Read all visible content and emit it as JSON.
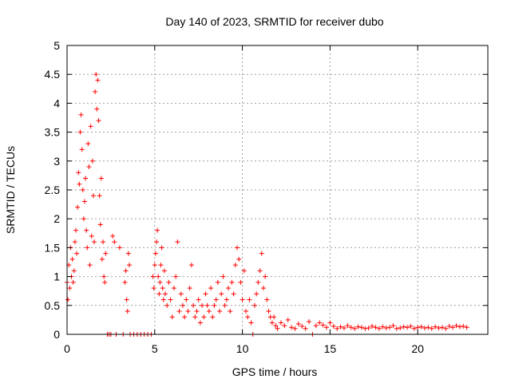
{
  "chart_data": {
    "type": "scatter",
    "title": "Day 140 of 2023, SRMTID for receiver dubo",
    "xlabel": "GPS time / hours",
    "ylabel": "SRMTID / TECUs",
    "xlim": [
      0,
      24
    ],
    "ylim": [
      0,
      5
    ],
    "xticks": [
      0,
      5,
      10,
      15,
      20
    ],
    "xtick_labels": [
      "0",
      "5",
      "10",
      "15",
      "20"
    ],
    "yticks": [
      0,
      0.5,
      1,
      1.5,
      2,
      2.5,
      3,
      3.5,
      4,
      4.5,
      5
    ],
    "ytick_labels": [
      "0",
      "0.5",
      "1",
      "1.5",
      "2",
      "2.5",
      "3",
      "3.5",
      "4",
      "4.5",
      "5"
    ],
    "grid": true,
    "marker": "+",
    "color": "#ff0000",
    "series": [
      {
        "name": "SRMTID",
        "x": [
          0.0,
          0.05,
          0.1,
          0.15,
          0.2,
          0.25,
          0.3,
          0.35,
          0.4,
          0.45,
          0.5,
          0.55,
          0.6,
          0.65,
          0.7,
          0.75,
          0.8,
          0.85,
          0.9,
          0.95,
          1.0,
          1.05,
          1.1,
          1.15,
          1.2,
          1.25,
          1.3,
          1.35,
          1.4,
          1.45,
          1.5,
          1.55,
          1.6,
          1.65,
          1.7,
          1.75,
          1.8,
          1.85,
          1.9,
          1.95,
          2.0,
          2.05,
          2.1,
          2.15,
          2.2,
          2.3,
          2.4,
          2.5,
          2.6,
          2.7,
          2.8,
          3.0,
          3.2,
          3.3,
          3.35,
          3.4,
          3.45,
          3.5,
          3.55,
          3.6,
          3.8,
          4.0,
          4.2,
          4.4,
          4.6,
          4.8,
          4.9,
          4.95,
          5.0,
          5.05,
          5.1,
          5.15,
          5.2,
          5.25,
          5.3,
          5.35,
          5.4,
          5.45,
          5.5,
          5.55,
          5.6,
          5.7,
          5.8,
          5.9,
          6.0,
          6.1,
          6.2,
          6.3,
          6.4,
          6.5,
          6.6,
          6.7,
          6.8,
          6.9,
          7.0,
          7.1,
          7.2,
          7.3,
          7.4,
          7.5,
          7.6,
          7.7,
          7.8,
          7.9,
          8.0,
          8.1,
          8.2,
          8.3,
          8.4,
          8.5,
          8.6,
          8.7,
          8.8,
          8.9,
          9.0,
          9.1,
          9.2,
          9.3,
          9.4,
          9.5,
          9.6,
          9.7,
          9.8,
          9.9,
          10.0,
          10.1,
          10.2,
          10.3,
          10.4,
          10.5,
          10.6,
          10.7,
          10.8,
          10.9,
          11.0,
          11.1,
          11.2,
          11.3,
          11.4,
          11.5,
          11.6,
          11.7,
          11.8,
          11.9,
          12.0,
          12.2,
          12.4,
          12.6,
          12.8,
          13.0,
          13.2,
          13.4,
          13.6,
          13.8,
          14.0,
          14.2,
          14.4,
          14.6,
          14.8,
          15.0,
          15.2,
          15.4,
          15.6,
          15.8,
          16.0,
          16.2,
          16.4,
          16.6,
          16.8,
          17.0,
          17.2,
          17.4,
          17.6,
          17.8,
          18.0,
          18.2,
          18.4,
          18.6,
          18.8,
          19.0,
          19.2,
          19.4,
          19.6,
          19.8,
          20.0,
          20.2,
          20.4,
          20.6,
          20.8,
          21.0,
          21.2,
          21.4,
          21.6,
          21.8,
          22.0,
          22.2,
          22.4,
          22.6,
          22.8
        ],
        "y": [
          0.9,
          0.6,
          1.2,
          0.8,
          1.5,
          1.0,
          1.3,
          0.9,
          1.1,
          1.6,
          1.8,
          1.4,
          2.2,
          2.8,
          2.6,
          3.5,
          3.8,
          3.2,
          2.5,
          2.0,
          2.3,
          2.7,
          1.8,
          1.5,
          3.3,
          2.9,
          1.2,
          3.6,
          1.7,
          3.0,
          2.4,
          1.6,
          4.2,
          4.5,
          3.9,
          4.4,
          3.7,
          2.4,
          1.9,
          2.7,
          1.3,
          1.6,
          1.0,
          0.9,
          1.4,
          0.0,
          0.0,
          0.0,
          1.7,
          1.6,
          0.0,
          1.5,
          0.0,
          0.9,
          1.1,
          0.6,
          0.4,
          1.4,
          1.2,
          0.0,
          0.0,
          0.0,
          0.0,
          0.0,
          0.0,
          0.0,
          1.0,
          0.8,
          1.2,
          1.4,
          1.6,
          1.8,
          1.0,
          0.7,
          0.9,
          1.2,
          1.5,
          0.8,
          0.6,
          1.1,
          0.7,
          0.5,
          0.9,
          0.6,
          0.3,
          0.8,
          1.0,
          1.6,
          0.4,
          0.7,
          0.5,
          0.3,
          0.6,
          0.4,
          0.8,
          1.2,
          0.5,
          0.3,
          0.4,
          0.6,
          0.2,
          0.5,
          0.3,
          0.7,
          0.5,
          0.4,
          0.8,
          0.3,
          0.5,
          0.6,
          0.9,
          0.4,
          0.7,
          1.0,
          0.5,
          0.6,
          0.8,
          0.4,
          0.9,
          0.7,
          1.2,
          1.5,
          1.3,
          0.9,
          0.6,
          1.1,
          0.4,
          0.3,
          0.6,
          0.2,
          0.0,
          0.5,
          0.7,
          0.9,
          1.1,
          1.4,
          0.8,
          1.0,
          0.6,
          0.4,
          0.3,
          0.2,
          0.3,
          0.15,
          0.1,
          0.2,
          0.15,
          0.25,
          0.12,
          0.1,
          0.18,
          0.14,
          0.1,
          0.22,
          0.0,
          0.15,
          0.2,
          0.16,
          0.12,
          0.2,
          0.14,
          0.1,
          0.13,
          0.11,
          0.15,
          0.12,
          0.1,
          0.13,
          0.12,
          0.1,
          0.11,
          0.14,
          0.12,
          0.1,
          0.13,
          0.11,
          0.12,
          0.15,
          0.1,
          0.11,
          0.13,
          0.12,
          0.14,
          0.1,
          0.12,
          0.13,
          0.11,
          0.12,
          0.1,
          0.13,
          0.11,
          0.12,
          0.1,
          0.14,
          0.12,
          0.15,
          0.13,
          0.14,
          0.12
        ]
      }
    ]
  }
}
